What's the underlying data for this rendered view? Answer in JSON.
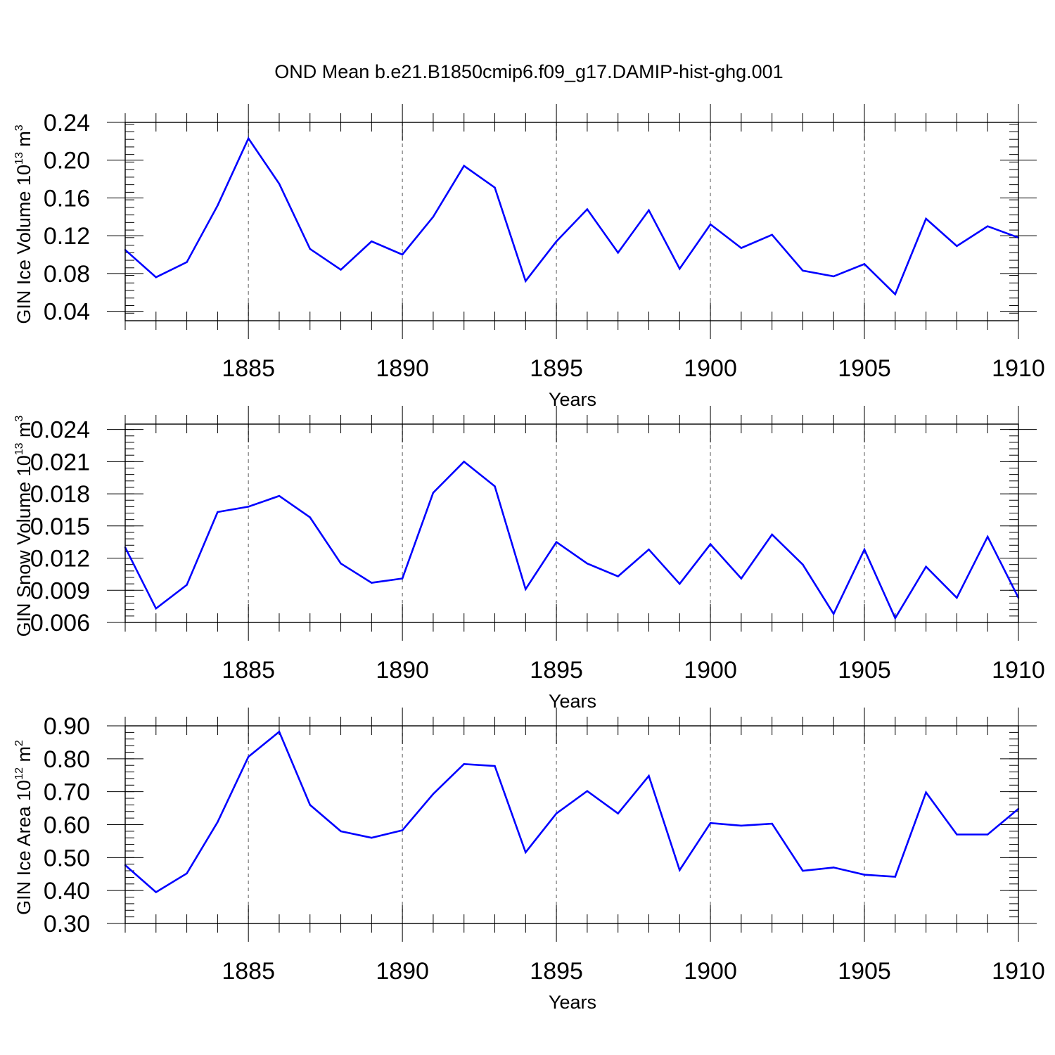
{
  "figure": {
    "title": "OND Mean b.e21.B1850cmip6.f09_g17.DAMIP-hist-ghg.001",
    "line_color": "#0000ff",
    "grid_color": "#777777"
  },
  "chart_data": [
    {
      "type": "line",
      "ylabel": {
        "base": "GIN Ice Volume 10",
        "exponent": "13",
        "unit": " m",
        "unit_exponent": "3"
      },
      "xlabel": "Years",
      "xlim": [
        1881,
        1910
      ],
      "ylim": [
        0.03,
        0.24
      ],
      "xticks": [
        1885,
        1890,
        1895,
        1900,
        1905,
        1910
      ],
      "xtick_labels": [
        "1885",
        "1890",
        "1895",
        "1900",
        "1905",
        "1910"
      ],
      "yticks": [
        0.04,
        0.08,
        0.12,
        0.16,
        0.2,
        0.24
      ],
      "ytick_labels": [
        "0.04",
        "0.08",
        "0.12",
        "0.16",
        "0.20",
        "0.24"
      ],
      "yminor_step": 0.008,
      "x": [
        1881,
        1882,
        1883,
        1884,
        1885,
        1886,
        1887,
        1888,
        1889,
        1890,
        1891,
        1892,
        1893,
        1894,
        1895,
        1896,
        1897,
        1898,
        1899,
        1900,
        1901,
        1902,
        1903,
        1904,
        1905,
        1906,
        1907,
        1908,
        1909,
        1910
      ],
      "series": [
        {
          "name": "GIN Ice Volume",
          "values": [
            0.105,
            0.076,
            0.092,
            0.152,
            0.223,
            0.175,
            0.106,
            0.084,
            0.114,
            0.1,
            0.14,
            0.194,
            0.171,
            0.072,
            0.114,
            0.148,
            0.102,
            0.147,
            0.085,
            0.132,
            0.107,
            0.121,
            0.083,
            0.077,
            0.09,
            0.058,
            0.138,
            0.109,
            0.13,
            0.118
          ]
        }
      ]
    },
    {
      "type": "line",
      "ylabel": {
        "base": "GIN Snow Volume 10",
        "exponent": "13",
        "unit": " m",
        "unit_exponent": "3"
      },
      "xlabel": "Years",
      "xlim": [
        1881,
        1910
      ],
      "ylim": [
        0.006,
        0.0245
      ],
      "xticks": [
        1885,
        1890,
        1895,
        1900,
        1905,
        1910
      ],
      "xtick_labels": [
        "1885",
        "1890",
        "1895",
        "1900",
        "1905",
        "1910"
      ],
      "yticks": [
        0.006,
        0.009,
        0.012,
        0.015,
        0.018,
        0.021,
        0.024
      ],
      "ytick_labels": [
        "0.006",
        "0.009",
        "0.012",
        "0.015",
        "0.018",
        "0.021",
        "0.024"
      ],
      "yminor_step": 0.0006,
      "x": [
        1881,
        1882,
        1883,
        1884,
        1885,
        1886,
        1887,
        1888,
        1889,
        1890,
        1891,
        1892,
        1893,
        1894,
        1895,
        1896,
        1897,
        1898,
        1899,
        1900,
        1901,
        1902,
        1903,
        1904,
        1905,
        1906,
        1907,
        1908,
        1909,
        1910
      ],
      "series": [
        {
          "name": "GIN Snow Volume",
          "values": [
            0.013,
            0.0073,
            0.0095,
            0.0163,
            0.0168,
            0.0178,
            0.0158,
            0.0115,
            0.0097,
            0.0101,
            0.0181,
            0.021,
            0.0187,
            0.0091,
            0.0135,
            0.0115,
            0.0103,
            0.0128,
            0.0096,
            0.0133,
            0.0101,
            0.0142,
            0.0114,
            0.0068,
            0.0128,
            0.0064,
            0.0112,
            0.0083,
            0.014,
            0.0083
          ]
        }
      ]
    },
    {
      "type": "line",
      "ylabel": {
        "base": "GIN Ice Area 10",
        "exponent": "12",
        "unit": " m",
        "unit_exponent": "2"
      },
      "xlabel": "Years",
      "xlim": [
        1881,
        1910
      ],
      "ylim": [
        0.3,
        0.9
      ],
      "xticks": [
        1885,
        1890,
        1895,
        1900,
        1905,
        1910
      ],
      "xtick_labels": [
        "1885",
        "1890",
        "1895",
        "1900",
        "1905",
        "1910"
      ],
      "yticks": [
        0.3,
        0.4,
        0.5,
        0.6,
        0.7,
        0.8,
        0.9
      ],
      "ytick_labels": [
        "0.30",
        "0.40",
        "0.50",
        "0.60",
        "0.70",
        "0.80",
        "0.90"
      ],
      "yminor_step": 0.02,
      "x": [
        1881,
        1882,
        1883,
        1884,
        1885,
        1886,
        1887,
        1888,
        1889,
        1890,
        1891,
        1892,
        1893,
        1894,
        1895,
        1896,
        1897,
        1898,
        1899,
        1900,
        1901,
        1902,
        1903,
        1904,
        1905,
        1906,
        1907,
        1908,
        1909,
        1910
      ],
      "series": [
        {
          "name": "GIN Ice Area",
          "values": [
            0.477,
            0.395,
            0.452,
            0.608,
            0.806,
            0.882,
            0.66,
            0.58,
            0.56,
            0.583,
            0.693,
            0.784,
            0.778,
            0.516,
            0.634,
            0.702,
            0.634,
            0.748,
            0.462,
            0.605,
            0.597,
            0.603,
            0.46,
            0.47,
            0.448,
            0.442,
            0.698,
            0.57,
            0.57,
            0.648
          ]
        }
      ]
    }
  ]
}
